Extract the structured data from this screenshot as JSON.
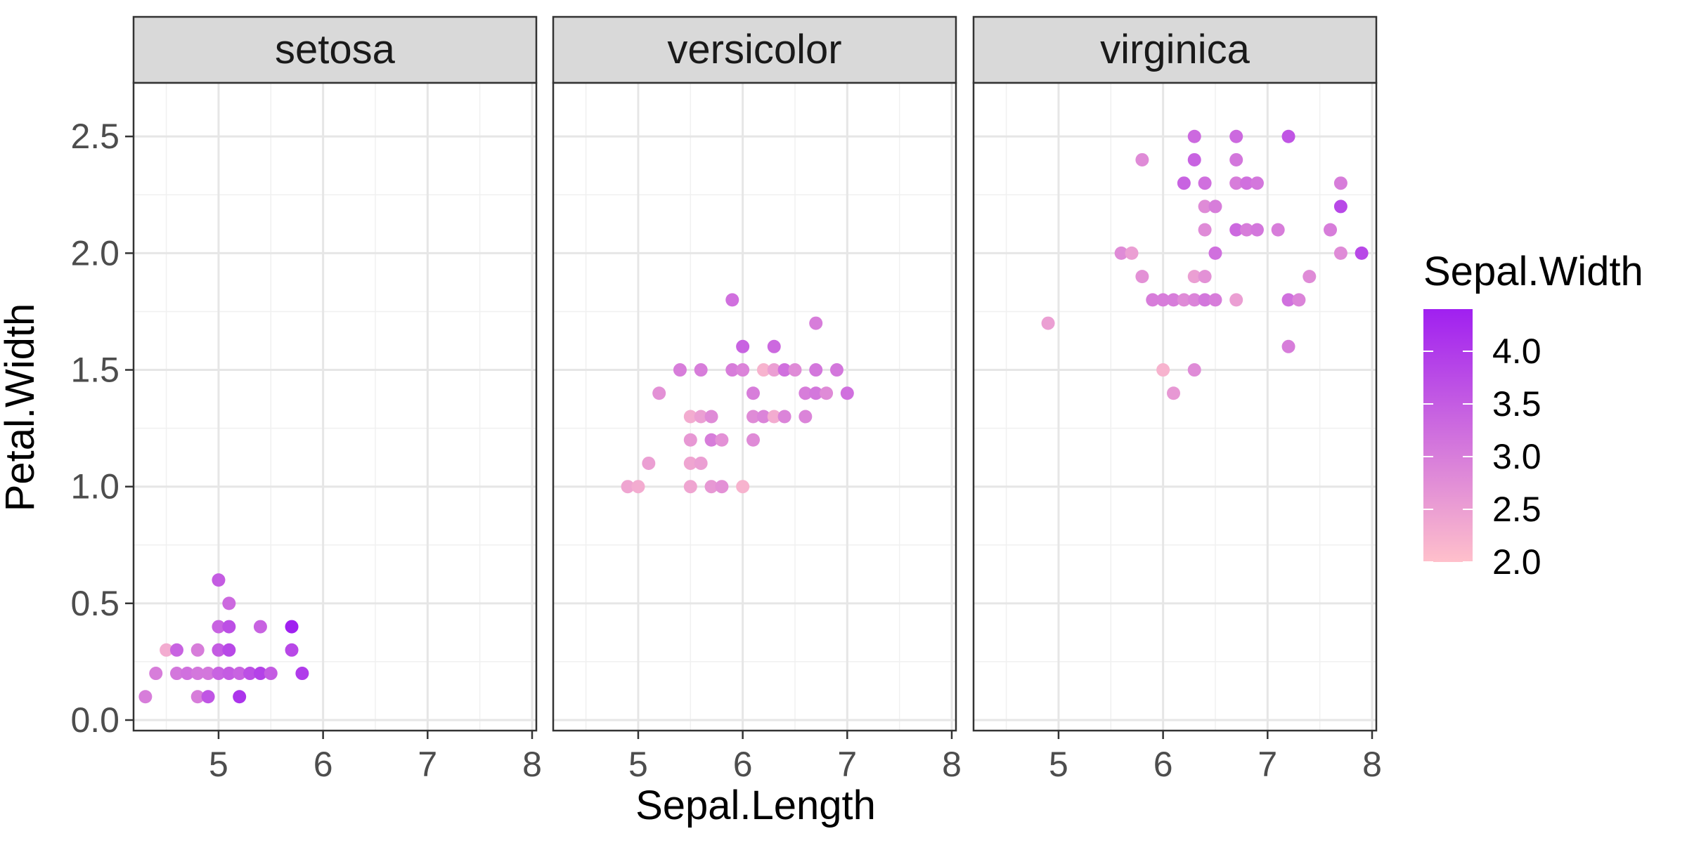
{
  "chart_data": {
    "type": "scatter",
    "facet_by": "Species",
    "xlabel": "Sepal.Length",
    "ylabel": "Petal.Width",
    "xlim": [
      4.2,
      8.0
    ],
    "ylim": [
      0.0,
      2.6
    ],
    "x_ticks": [
      5,
      6,
      7,
      8
    ],
    "y_ticks": [
      0.0,
      0.5,
      1.0,
      1.5,
      2.0,
      2.5
    ],
    "y_tick_labels": [
      "0.0",
      "0.5",
      "1.0",
      "1.5",
      "2.0",
      "2.5"
    ],
    "grid": true,
    "legend": {
      "title": "Sepal.Width",
      "placement": "right",
      "min": 2.0,
      "max": 4.4,
      "low_color": "#ffc0cb",
      "high_color": "#a020f0",
      "breaks": [
        2.0,
        2.5,
        3.0,
        3.5,
        4.0
      ],
      "break_labels": [
        "2.0",
        "2.5",
        "3.0",
        "3.5",
        "4.0"
      ]
    },
    "panels": [
      {
        "title": "setosa",
        "points": [
          [
            4.3,
            0.1,
            3.0
          ],
          [
            4.4,
            0.2,
            3.0
          ],
          [
            4.5,
            0.3,
            2.3
          ],
          [
            4.6,
            0.3,
            3.4
          ],
          [
            4.6,
            0.2,
            3.1
          ],
          [
            4.7,
            0.2,
            3.2
          ],
          [
            4.8,
            0.2,
            3.1
          ],
          [
            4.8,
            0.1,
            3.0
          ],
          [
            4.8,
            0.3,
            3.0
          ],
          [
            4.9,
            0.2,
            3.1
          ],
          [
            4.9,
            0.1,
            3.6
          ],
          [
            5.0,
            0.6,
            3.5
          ],
          [
            5.0,
            0.4,
            3.4
          ],
          [
            5.0,
            0.3,
            3.5
          ],
          [
            5.0,
            0.2,
            3.4
          ],
          [
            5.1,
            0.5,
            3.3
          ],
          [
            5.1,
            0.4,
            3.7
          ],
          [
            5.1,
            0.3,
            3.8
          ],
          [
            5.1,
            0.2,
            3.5
          ],
          [
            5.2,
            0.2,
            3.4
          ],
          [
            5.2,
            0.1,
            4.1
          ],
          [
            5.3,
            0.2,
            3.7
          ],
          [
            5.4,
            0.4,
            3.4
          ],
          [
            5.4,
            0.2,
            3.9
          ],
          [
            5.5,
            0.2,
            3.5
          ],
          [
            5.7,
            0.4,
            4.4
          ],
          [
            5.7,
            0.3,
            3.8
          ],
          [
            5.8,
            0.2,
            4.0
          ]
        ]
      },
      {
        "title": "versicolor",
        "points": [
          [
            4.9,
            1.0,
            2.4
          ],
          [
            5.0,
            1.0,
            2.3
          ],
          [
            5.1,
            1.1,
            2.5
          ],
          [
            5.2,
            1.4,
            2.7
          ],
          [
            5.4,
            1.5,
            3.0
          ],
          [
            5.5,
            1.3,
            2.3
          ],
          [
            5.5,
            1.2,
            2.6
          ],
          [
            5.5,
            1.1,
            2.4
          ],
          [
            5.5,
            1.0,
            2.4
          ],
          [
            5.6,
            1.5,
            3.0
          ],
          [
            5.6,
            1.3,
            2.5
          ],
          [
            5.6,
            1.1,
            2.5
          ],
          [
            5.7,
            1.3,
            2.8
          ],
          [
            5.7,
            1.2,
            3.0
          ],
          [
            5.7,
            1.0,
            2.6
          ],
          [
            5.8,
            1.2,
            2.7
          ],
          [
            5.8,
            1.0,
            2.7
          ],
          [
            5.9,
            1.8,
            3.2
          ],
          [
            5.9,
            1.5,
            3.0
          ],
          [
            6.0,
            1.6,
            3.4
          ],
          [
            6.0,
            1.5,
            2.9
          ],
          [
            6.0,
            1.0,
            2.2
          ],
          [
            6.1,
            1.4,
            3.0
          ],
          [
            6.1,
            1.3,
            2.8
          ],
          [
            6.1,
            1.2,
            2.8
          ],
          [
            6.2,
            1.5,
            2.2
          ],
          [
            6.2,
            1.3,
            2.9
          ],
          [
            6.3,
            1.6,
            3.3
          ],
          [
            6.3,
            1.5,
            2.5
          ],
          [
            6.3,
            1.3,
            2.3
          ],
          [
            6.4,
            1.5,
            3.2
          ],
          [
            6.4,
            1.3,
            2.9
          ],
          [
            6.5,
            1.5,
            2.8
          ],
          [
            6.6,
            1.4,
            3.0
          ],
          [
            6.6,
            1.3,
            2.9
          ],
          [
            6.7,
            1.7,
            3.0
          ],
          [
            6.7,
            1.5,
            3.1
          ],
          [
            6.7,
            1.4,
            3.1
          ],
          [
            6.8,
            1.4,
            2.8
          ],
          [
            6.9,
            1.5,
            3.1
          ],
          [
            7.0,
            1.4,
            3.2
          ]
        ]
      },
      {
        "title": "virginica",
        "points": [
          [
            4.9,
            1.7,
            2.5
          ],
          [
            5.6,
            2.0,
            2.8
          ],
          [
            5.7,
            2.0,
            2.5
          ],
          [
            5.8,
            2.4,
            2.8
          ],
          [
            5.8,
            1.9,
            2.7
          ],
          [
            5.9,
            1.8,
            3.0
          ],
          [
            6.0,
            1.8,
            3.0
          ],
          [
            6.0,
            1.5,
            2.2
          ],
          [
            6.1,
            1.8,
            3.0
          ],
          [
            6.1,
            1.4,
            2.6
          ],
          [
            6.2,
            2.3,
            3.4
          ],
          [
            6.2,
            1.8,
            2.8
          ],
          [
            6.3,
            2.5,
            3.3
          ],
          [
            6.3,
            2.4,
            3.4
          ],
          [
            6.3,
            1.9,
            2.5
          ],
          [
            6.3,
            1.8,
            2.9
          ],
          [
            6.3,
            1.5,
            2.8
          ],
          [
            6.4,
            2.3,
            3.2
          ],
          [
            6.4,
            2.2,
            2.8
          ],
          [
            6.4,
            2.1,
            2.8
          ],
          [
            6.4,
            1.9,
            2.7
          ],
          [
            6.4,
            1.8,
            3.1
          ],
          [
            6.5,
            2.2,
            3.0
          ],
          [
            6.5,
            2.0,
            3.2
          ],
          [
            6.5,
            1.8,
            3.0
          ],
          [
            6.7,
            2.5,
            3.3
          ],
          [
            6.7,
            2.4,
            3.1
          ],
          [
            6.7,
            2.3,
            3.0
          ],
          [
            6.7,
            2.1,
            3.3
          ],
          [
            6.7,
            1.8,
            2.5
          ],
          [
            6.8,
            2.3,
            3.2
          ],
          [
            6.8,
            2.1,
            3.0
          ],
          [
            6.9,
            2.3,
            3.1
          ],
          [
            6.9,
            2.1,
            3.1
          ],
          [
            7.1,
            2.1,
            3.0
          ],
          [
            7.2,
            2.5,
            3.6
          ],
          [
            7.2,
            1.8,
            3.2
          ],
          [
            7.2,
            1.6,
            3.0
          ],
          [
            7.3,
            1.8,
            2.9
          ],
          [
            7.4,
            1.9,
            2.8
          ],
          [
            7.6,
            2.1,
            3.0
          ],
          [
            7.7,
            2.3,
            3.0
          ],
          [
            7.7,
            2.2,
            3.8
          ],
          [
            7.7,
            2.0,
            2.8
          ],
          [
            7.9,
            2.0,
            3.8
          ]
        ]
      }
    ]
  }
}
